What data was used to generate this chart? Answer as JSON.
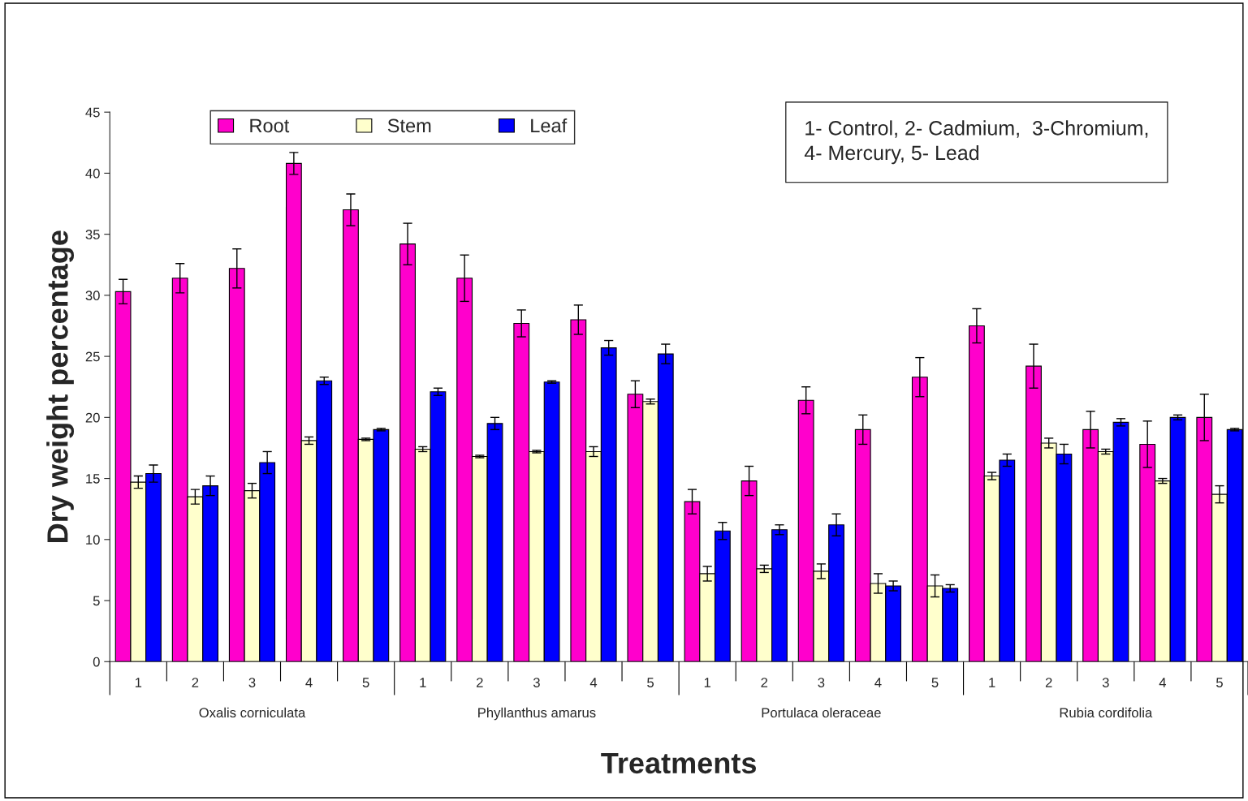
{
  "chart_data": {
    "type": "bar",
    "xlabel": "Treatments",
    "ylabel": "Dry weight percentage",
    "categories": [
      "1",
      "2",
      "3",
      "4",
      "5",
      "1",
      "2",
      "3",
      "4",
      "5",
      "1",
      "2",
      "3",
      "4",
      "5",
      "1",
      "2",
      "3",
      "4",
      "5"
    ],
    "series": [
      {
        "name": "Root",
        "color": "#ff00cc",
        "values": [
          30.3,
          31.4,
          32.2,
          40.8,
          37.0,
          34.2,
          31.4,
          27.7,
          28.0,
          21.9,
          13.1,
          14.8,
          21.4,
          19.0,
          23.3,
          27.5,
          24.2,
          19.0,
          17.8,
          20.0
        ],
        "errors": [
          1.0,
          1.2,
          1.6,
          0.9,
          1.3,
          1.7,
          1.9,
          1.1,
          1.2,
          1.1,
          1.0,
          1.2,
          1.1,
          1.2,
          1.6,
          1.4,
          1.8,
          1.5,
          1.9,
          1.9
        ]
      },
      {
        "name": "Stem",
        "color": "#ffffcc",
        "values": [
          14.7,
          13.5,
          14.0,
          18.1,
          18.2,
          17.4,
          16.8,
          17.2,
          17.2,
          21.3,
          7.2,
          7.6,
          7.4,
          6.4,
          6.2,
          15.2,
          17.9,
          17.2,
          14.8,
          13.7
        ],
        "errors": [
          0.5,
          0.6,
          0.6,
          0.3,
          0.1,
          0.2,
          0.1,
          0.1,
          0.4,
          0.2,
          0.6,
          0.3,
          0.6,
          0.8,
          0.9,
          0.3,
          0.4,
          0.2,
          0.2,
          0.7
        ]
      },
      {
        "name": "Leaf",
        "color": "#0000ff",
        "values": [
          15.4,
          14.4,
          16.3,
          23.0,
          19.0,
          22.1,
          19.5,
          22.9,
          25.7,
          25.2,
          10.7,
          10.8,
          11.2,
          6.2,
          6.0,
          16.5,
          17.0,
          19.6,
          20.0,
          19.0
        ],
        "errors": [
          0.7,
          0.8,
          0.9,
          0.3,
          0.1,
          0.3,
          0.5,
          0.1,
          0.6,
          0.8,
          0.7,
          0.4,
          0.9,
          0.4,
          0.3,
          0.5,
          0.8,
          0.3,
          0.2,
          0.1
        ]
      }
    ],
    "ylim": [
      0,
      45
    ],
    "yticks": [
      0,
      5,
      10,
      15,
      20,
      25,
      30,
      35,
      40,
      45
    ],
    "grid": false,
    "legend": "top left",
    "annotations": [
      "Oxalis corniculata",
      "Phyllanthus amarus",
      "Portulaca oleraceae",
      "Rubia cordifolia",
      "1- Control, 2- Cadmium,  3-Chromium,\n4- Mercury, 5- Lead"
    ]
  }
}
